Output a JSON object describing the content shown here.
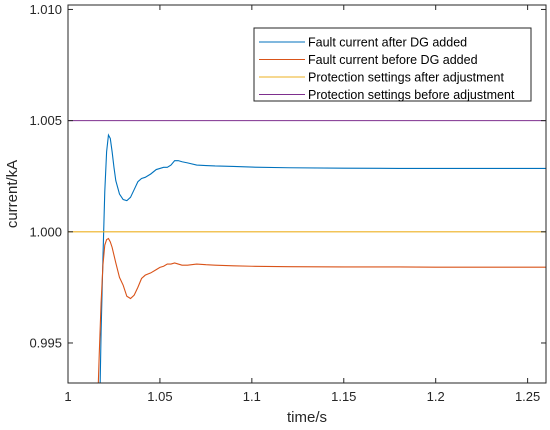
{
  "chart_data": {
    "type": "line",
    "title": "",
    "xlabel": "time/s",
    "ylabel": "current/kA",
    "xlim": [
      1.0,
      1.26
    ],
    "ylim": [
      0.9932,
      1.0102
    ],
    "xticks": [
      1,
      1.05,
      1.1,
      1.15,
      1.2,
      1.25
    ],
    "xtick_labels": [
      "1",
      "1.05",
      "1.1",
      "1.15",
      "1.2",
      "1.25"
    ],
    "yticks": [
      0.995,
      1.0,
      1.005,
      1.01
    ],
    "ytick_labels": [
      "0.995",
      "1.000",
      "1.005",
      "1.010"
    ],
    "grid": false,
    "legend_position": "top-right",
    "series": [
      {
        "name": "Fault current after DG added",
        "color": "#0072BD",
        "x": [
          1.0175,
          1.018,
          1.019,
          1.02,
          1.021,
          1.022,
          1.023,
          1.024,
          1.025,
          1.026,
          1.028,
          1.03,
          1.032,
          1.034,
          1.036,
          1.038,
          1.04,
          1.042,
          1.045,
          1.048,
          1.05,
          1.052,
          1.054,
          1.056,
          1.058,
          1.06,
          1.062,
          1.065,
          1.07,
          1.075,
          1.08,
          1.09,
          1.1,
          1.12,
          1.15,
          1.18,
          1.2,
          1.22,
          1.24,
          1.26
        ],
        "y": [
          0.9932,
          0.9955,
          0.9988,
          1.0018,
          1.0036,
          1.00435,
          1.0042,
          1.0036,
          1.0029,
          1.0023,
          1.0017,
          1.00145,
          1.0014,
          1.00155,
          1.0019,
          1.00225,
          1.0024,
          1.00245,
          1.0026,
          1.0028,
          1.00285,
          1.0029,
          1.0029,
          1.003,
          1.0032,
          1.0032,
          1.00315,
          1.0031,
          1.003,
          1.00298,
          1.00296,
          1.00294,
          1.00291,
          1.00288,
          1.00286,
          1.00285,
          1.00285,
          1.00285,
          1.00285,
          1.00285
        ]
      },
      {
        "name": "Fault current before DG added",
        "color": "#D95319",
        "x": [
          1.0165,
          1.017,
          1.018,
          1.019,
          1.02,
          1.021,
          1.022,
          1.023,
          1.024,
          1.025,
          1.026,
          1.028,
          1.03,
          1.032,
          1.034,
          1.036,
          1.038,
          1.04,
          1.042,
          1.045,
          1.048,
          1.05,
          1.052,
          1.054,
          1.056,
          1.058,
          1.06,
          1.062,
          1.065,
          1.07,
          1.075,
          1.08,
          1.09,
          1.1,
          1.12,
          1.15,
          1.18,
          1.2,
          1.22,
          1.24,
          1.26
        ],
        "y": [
          0.9932,
          0.9945,
          0.9968,
          0.9985,
          0.9994,
          0.99965,
          0.9997,
          0.99955,
          0.9993,
          0.99895,
          0.9986,
          0.99795,
          0.9976,
          0.9971,
          0.997,
          0.99715,
          0.9975,
          0.9979,
          0.99805,
          0.99815,
          0.9983,
          0.9984,
          0.99845,
          0.99855,
          0.99855,
          0.9986,
          0.99855,
          0.9985,
          0.9985,
          0.99855,
          0.99852,
          0.9985,
          0.99847,
          0.99845,
          0.99843,
          0.99842,
          0.99842,
          0.99841,
          0.99841,
          0.99841,
          0.99841
        ]
      },
      {
        "name": "Protection settings after adjustment",
        "color": "#EDB120",
        "x": [
          1.0,
          1.26
        ],
        "y": [
          1.0,
          1.0
        ]
      },
      {
        "name": "Protection settings before adjustment",
        "color": "#7E2F8E",
        "x": [
          1.0,
          1.26
        ],
        "y": [
          1.005,
          1.005
        ]
      }
    ]
  }
}
